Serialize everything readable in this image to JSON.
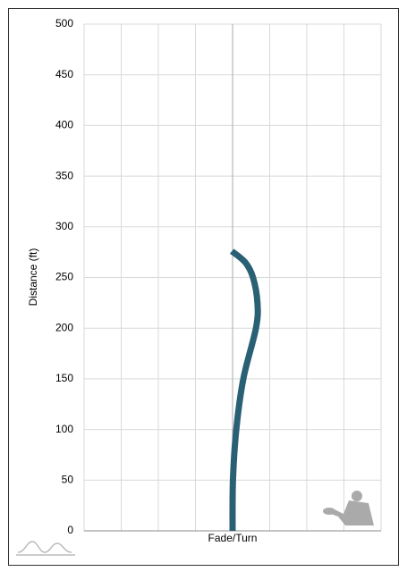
{
  "chart_data": {
    "type": "line",
    "x_label": "Fade/Turn",
    "y_label": "Distance (ft)",
    "series": [
      {
        "color": "#2a6074",
        "x": [
          0,
          0.01,
          0.1,
          0.29,
          0.63,
          0.67,
          0.55,
          0.34,
          -0.02
        ],
        "values": [
          0,
          50,
          100,
          150,
          200,
          225,
          250,
          265,
          276
        ]
      }
    ],
    "xlim": [
      -4,
      4
    ],
    "xticks": [
      -4,
      -3,
      -2,
      -1,
      0,
      1,
      2,
      3,
      4
    ],
    "ylim": [
      0,
      500
    ],
    "yticks": [
      0,
      50,
      100,
      150,
      200,
      250,
      300,
      350,
      400,
      450,
      500
    ],
    "grid": true
  }
}
